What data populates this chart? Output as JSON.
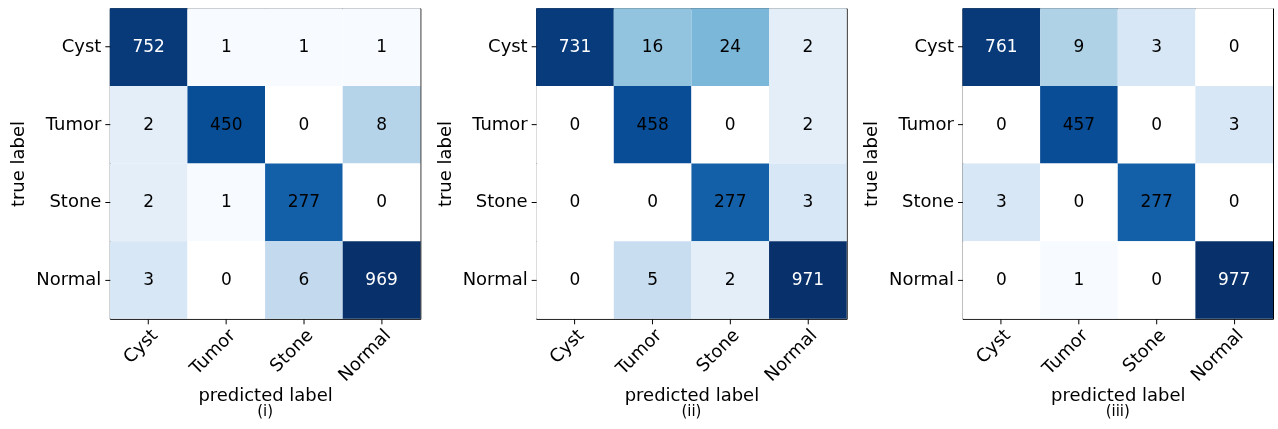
{
  "chart_data": [
    {
      "type": "heatmap",
      "title": "(i)",
      "xlabel": "predicted label",
      "ylabel": "true label",
      "categories": [
        "Cyst",
        "Tumor",
        "Stone",
        "Normal"
      ],
      "y_categories": [
        "Cyst",
        "Tumor",
        "Stone",
        "Normal"
      ],
      "cells": [
        [
          752,
          1,
          1,
          1
        ],
        [
          2,
          450,
          0,
          8
        ],
        [
          2,
          1,
          277,
          0
        ],
        [
          3,
          0,
          6,
          969
        ]
      ],
      "data_labels": true
    },
    {
      "type": "heatmap",
      "title": "(ii)",
      "xlabel": "predicted label",
      "ylabel": "true label",
      "categories": [
        "Cyst",
        "Tumor",
        "Stone",
        "Normal"
      ],
      "y_categories": [
        "Cyst",
        "Tumor",
        "Stone",
        "Normal"
      ],
      "cells": [
        [
          731,
          16,
          24,
          2
        ],
        [
          0,
          458,
          0,
          2
        ],
        [
          0,
          0,
          277,
          3
        ],
        [
          0,
          5,
          2,
          971
        ]
      ],
      "data_labels": true
    },
    {
      "type": "heatmap",
      "title": "(iii)",
      "xlabel": "predicted label",
      "ylabel": "true label",
      "categories": [
        "Cyst",
        "Tumor",
        "Stone",
        "Normal"
      ],
      "y_categories": [
        "Cyst",
        "Tumor",
        "Stone",
        "Normal"
      ],
      "cells": [
        [
          761,
          9,
          3,
          0
        ],
        [
          0,
          457,
          0,
          3
        ],
        [
          3,
          0,
          277,
          0
        ],
        [
          0,
          1,
          0,
          977
        ]
      ],
      "data_labels": true
    }
  ]
}
